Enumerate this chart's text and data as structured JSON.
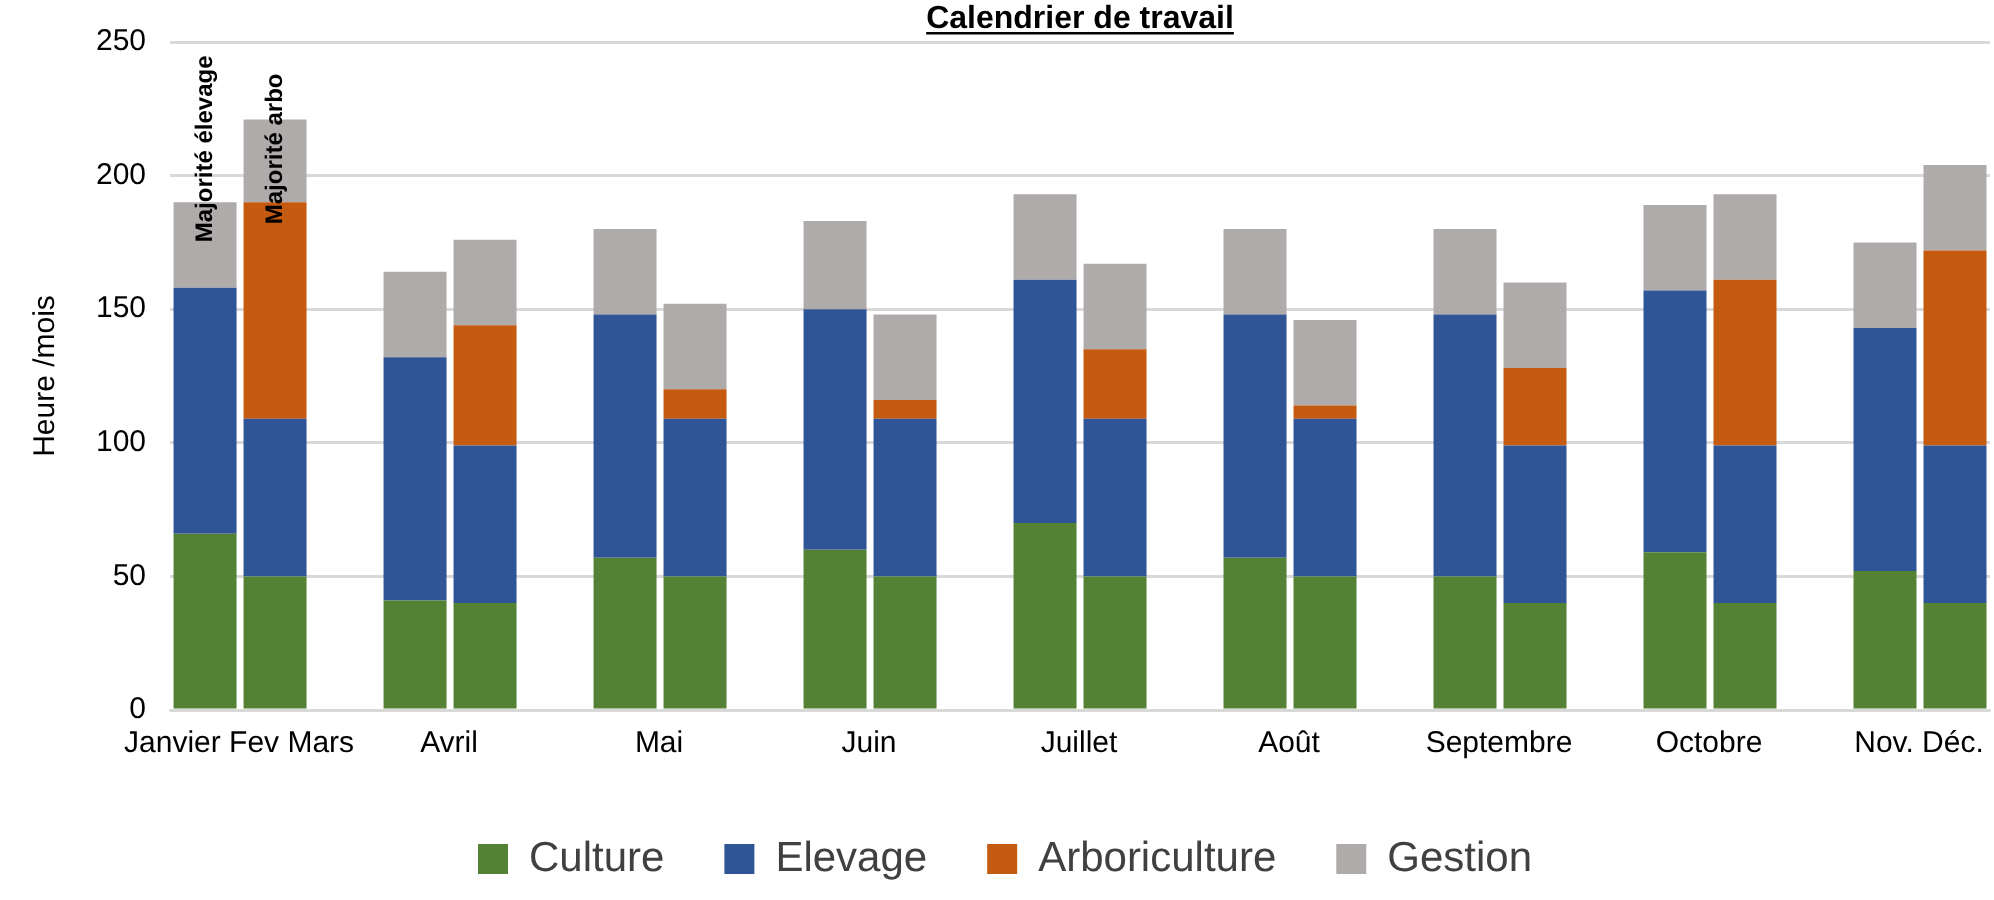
{
  "chart_data": {
    "type": "bar",
    "title": "Calendrier de travail",
    "ylabel": "Heure /mois",
    "stacked": true,
    "categories": [
      "Janvier Fev Mars",
      null,
      null,
      "Avril",
      null,
      null,
      "Mai",
      null,
      null,
      "Juin",
      null,
      null,
      "Juillet",
      null,
      null,
      "Août",
      null,
      null,
      "Septembre",
      null,
      null,
      "Octobre",
      null,
      null,
      "Nov. Déc.",
      null
    ],
    "series": [
      {
        "name": "Culture",
        "color": "#548235",
        "values": [
          66,
          50,
          null,
          41,
          40,
          null,
          57,
          50,
          null,
          60,
          50,
          null,
          70,
          50,
          null,
          57,
          50,
          null,
          50,
          40,
          null,
          59,
          40,
          null,
          52,
          40
        ]
      },
      {
        "name": "Elevage",
        "color": "#2f5597",
        "values": [
          92,
          59,
          null,
          91,
          59,
          null,
          91,
          59,
          null,
          90,
          59,
          null,
          91,
          59,
          null,
          91,
          59,
          null,
          98,
          59,
          null,
          98,
          59,
          null,
          91,
          59
        ]
      },
      {
        "name": "Arboriculture",
        "color": "#c55a11",
        "values": [
          0,
          81,
          null,
          0,
          45,
          null,
          0,
          11,
          null,
          0,
          7,
          null,
          0,
          26,
          null,
          0,
          5,
          null,
          0,
          29,
          null,
          0,
          62,
          null,
          0,
          73
        ]
      },
      {
        "name": "Gestion",
        "color": "#afabab",
        "values": [
          32,
          31,
          null,
          32,
          32,
          null,
          32,
          32,
          null,
          33,
          32,
          null,
          32,
          32,
          null,
          32,
          32,
          null,
          32,
          32,
          null,
          32,
          32,
          null,
          32,
          32
        ]
      }
    ],
    "ylim": [
      0,
      250
    ],
    "yticks": [
      0,
      50,
      100,
      150,
      200,
      250
    ],
    "grid": "y",
    "legend": "bottom",
    "annotations": [
      "Majorité élevage",
      "Majorité arbo"
    ]
  }
}
